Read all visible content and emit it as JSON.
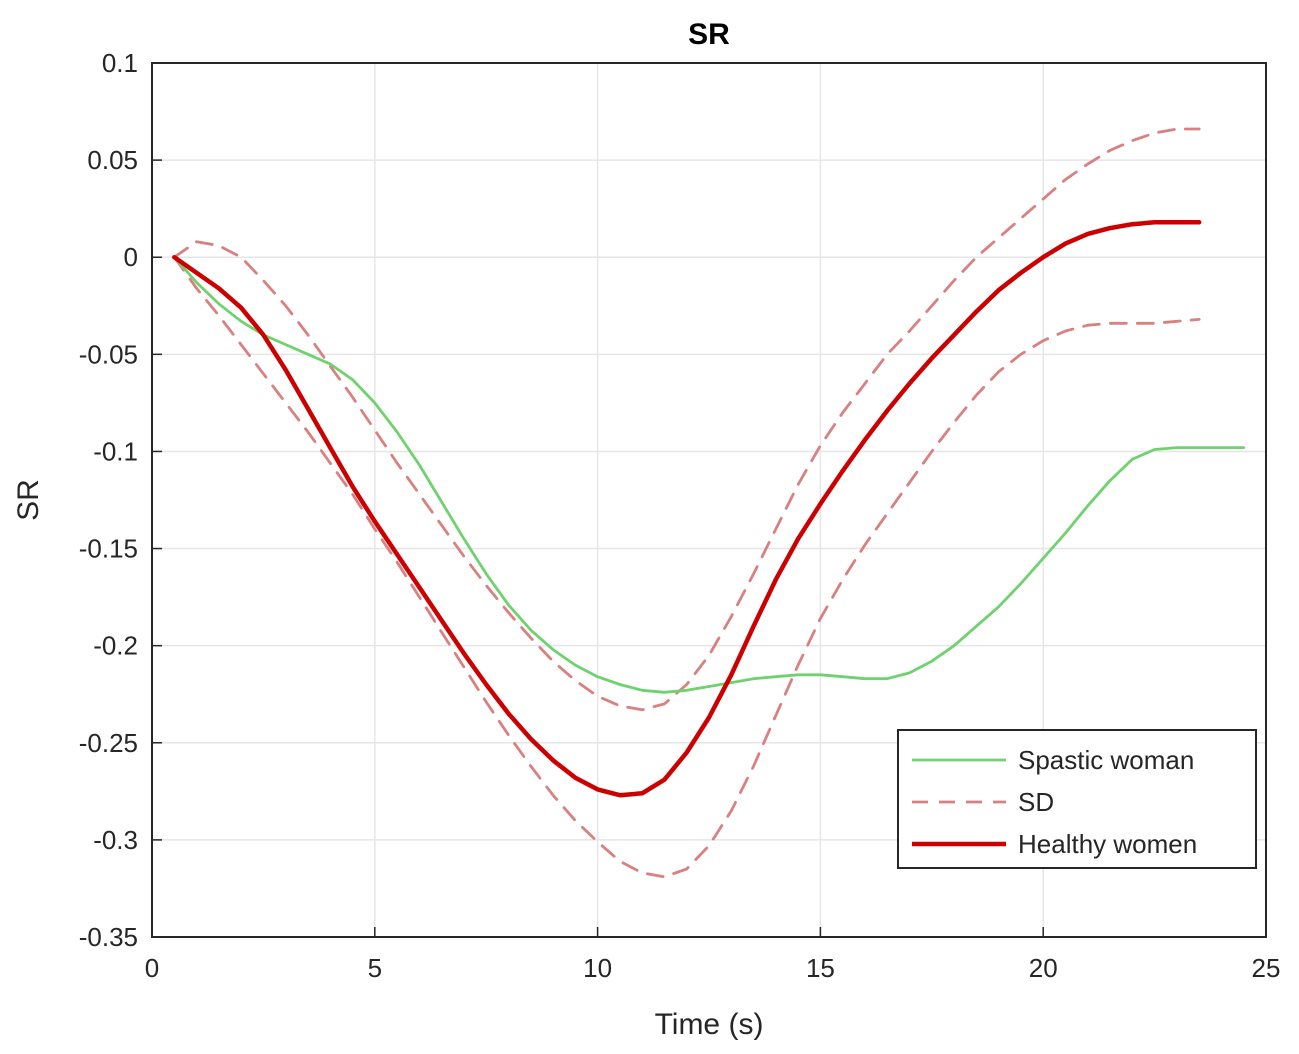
{
  "chart_data": {
    "type": "line",
    "title": "SR",
    "xlabel": "Time (s)",
    "ylabel": "SR",
    "xlim": [
      0,
      25
    ],
    "ylim": [
      -0.35,
      0.1
    ],
    "xticks": [
      0,
      5,
      10,
      15,
      20,
      25
    ],
    "xtick_labels": [
      "0",
      "5",
      "10",
      "15",
      "20",
      "25"
    ],
    "yticks": [
      0.1,
      0.05,
      0,
      -0.05,
      -0.1,
      -0.15,
      -0.2,
      -0.25,
      -0.3,
      -0.35
    ],
    "ytick_labels": [
      "0.1",
      "0.05",
      "0",
      "-0.05",
      "-0.1",
      "-0.15",
      "-0.2",
      "-0.25",
      "-0.3",
      "-0.35"
    ],
    "grid": true,
    "legend_position": "bottom-right",
    "colors": {
      "spastic": "#6fd26f",
      "sd": "#d98080",
      "healthy": "#cc0000",
      "grid": "#e6e6e6",
      "axis": "#262626"
    },
    "series": [
      {
        "name": "Spastic woman",
        "style": "solid",
        "color_key": "spastic",
        "x": [
          0.5,
          1.0,
          1.5,
          2.0,
          2.5,
          3.0,
          3.5,
          4.0,
          4.5,
          5.0,
          5.5,
          6.0,
          6.5,
          7.0,
          7.5,
          8.0,
          8.5,
          9.0,
          9.5,
          10.0,
          10.5,
          11.0,
          11.5,
          12.0,
          12.5,
          13.0,
          13.5,
          14.0,
          14.5,
          15.0,
          15.5,
          16.0,
          16.5,
          17.0,
          17.5,
          18.0,
          18.5,
          19.0,
          19.5,
          20.0,
          20.5,
          21.0,
          21.5,
          22.0,
          22.5,
          23.0,
          23.5,
          24.0,
          24.5
        ],
        "y": [
          0.0,
          -0.013,
          -0.024,
          -0.033,
          -0.04,
          -0.045,
          -0.05,
          -0.055,
          -0.063,
          -0.075,
          -0.09,
          -0.107,
          -0.126,
          -0.145,
          -0.163,
          -0.179,
          -0.192,
          -0.202,
          -0.21,
          -0.216,
          -0.22,
          -0.223,
          -0.224,
          -0.223,
          -0.221,
          -0.219,
          -0.217,
          -0.216,
          -0.215,
          -0.215,
          -0.216,
          -0.217,
          -0.217,
          -0.214,
          -0.208,
          -0.2,
          -0.19,
          -0.18,
          -0.168,
          -0.155,
          -0.142,
          -0.128,
          -0.115,
          -0.104,
          -0.099,
          -0.098,
          -0.098,
          -0.098,
          -0.098
        ]
      },
      {
        "name": "SD",
        "style": "dashed",
        "color_key": "sd",
        "x": [
          0.5,
          1.0,
          1.5,
          2.0,
          2.5,
          3.0,
          3.5,
          4.0,
          4.5,
          5.0,
          5.5,
          6.0,
          6.5,
          7.0,
          7.5,
          8.0,
          8.5,
          9.0,
          9.5,
          10.0,
          10.5,
          11.0,
          11.5,
          12.0,
          12.5,
          13.0,
          13.5,
          14.0,
          14.5,
          15.0,
          15.5,
          16.0,
          16.5,
          17.0,
          17.5,
          18.0,
          18.5,
          19.0,
          19.5,
          20.0,
          20.5,
          21.0,
          21.5,
          22.0,
          22.5,
          23.0,
          23.5
        ],
        "y": [
          0.0,
          0.008,
          0.006,
          0.0,
          -0.012,
          -0.025,
          -0.04,
          -0.056,
          -0.072,
          -0.089,
          -0.106,
          -0.122,
          -0.138,
          -0.154,
          -0.169,
          -0.183,
          -0.196,
          -0.208,
          -0.218,
          -0.226,
          -0.231,
          -0.233,
          -0.23,
          -0.22,
          -0.205,
          -0.185,
          -0.163,
          -0.14,
          -0.117,
          -0.097,
          -0.08,
          -0.065,
          -0.05,
          -0.038,
          -0.025,
          -0.012,
          0.0,
          0.01,
          0.02,
          0.03,
          0.04,
          0.048,
          0.055,
          0.06,
          0.064,
          0.066,
          0.066
        ]
      },
      {
        "name": "",
        "style": "dashed",
        "color_key": "sd",
        "x": [
          0.5,
          1.0,
          1.5,
          2.0,
          2.5,
          3.0,
          3.5,
          4.0,
          4.5,
          5.0,
          5.5,
          6.0,
          6.5,
          7.0,
          7.5,
          8.0,
          8.5,
          9.0,
          9.5,
          10.0,
          10.5,
          11.0,
          11.5,
          12.0,
          12.5,
          13.0,
          13.5,
          14.0,
          14.5,
          15.0,
          15.5,
          16.0,
          16.5,
          17.0,
          17.5,
          18.0,
          18.5,
          19.0,
          19.5,
          20.0,
          20.5,
          21.0,
          21.5,
          22.0,
          22.5,
          23.0,
          23.5
        ],
        "y": [
          0.0,
          -0.016,
          -0.03,
          -0.045,
          -0.06,
          -0.075,
          -0.09,
          -0.106,
          -0.122,
          -0.14,
          -0.157,
          -0.175,
          -0.193,
          -0.211,
          -0.229,
          -0.246,
          -0.262,
          -0.277,
          -0.29,
          -0.301,
          -0.311,
          -0.317,
          -0.319,
          -0.315,
          -0.303,
          -0.285,
          -0.262,
          -0.236,
          -0.21,
          -0.186,
          -0.166,
          -0.148,
          -0.132,
          -0.116,
          -0.1,
          -0.085,
          -0.071,
          -0.059,
          -0.05,
          -0.043,
          -0.038,
          -0.035,
          -0.034,
          -0.034,
          -0.034,
          -0.033,
          -0.032
        ]
      },
      {
        "name": "Healthy women",
        "style": "solid",
        "color_key": "healthy",
        "x": [
          0.5,
          1.0,
          1.5,
          2.0,
          2.5,
          3.0,
          3.5,
          4.0,
          4.5,
          5.0,
          5.5,
          6.0,
          6.5,
          7.0,
          7.5,
          8.0,
          8.5,
          9.0,
          9.5,
          10.0,
          10.5,
          11.0,
          11.5,
          12.0,
          12.5,
          13.0,
          13.5,
          14.0,
          14.5,
          15.0,
          15.5,
          16.0,
          16.5,
          17.0,
          17.5,
          18.0,
          18.5,
          19.0,
          19.5,
          20.0,
          20.5,
          21.0,
          21.5,
          22.0,
          22.5,
          23.0,
          23.5
        ],
        "y": [
          0.0,
          -0.008,
          -0.016,
          -0.026,
          -0.04,
          -0.058,
          -0.078,
          -0.098,
          -0.118,
          -0.136,
          -0.153,
          -0.17,
          -0.187,
          -0.204,
          -0.22,
          -0.235,
          -0.248,
          -0.259,
          -0.268,
          -0.274,
          -0.277,
          -0.276,
          -0.269,
          -0.255,
          -0.237,
          -0.215,
          -0.19,
          -0.166,
          -0.145,
          -0.127,
          -0.11,
          -0.094,
          -0.079,
          -0.065,
          -0.052,
          -0.04,
          -0.028,
          -0.017,
          -0.008,
          0.0,
          0.007,
          0.012,
          0.015,
          0.017,
          0.018,
          0.018,
          0.018
        ]
      }
    ],
    "legend": [
      {
        "label": "Spastic woman",
        "style": "solid",
        "color_key": "spastic"
      },
      {
        "label": "SD",
        "style": "dashed",
        "color_key": "sd"
      },
      {
        "label": "Healthy women",
        "style": "solid",
        "color_key": "healthy"
      }
    ]
  }
}
